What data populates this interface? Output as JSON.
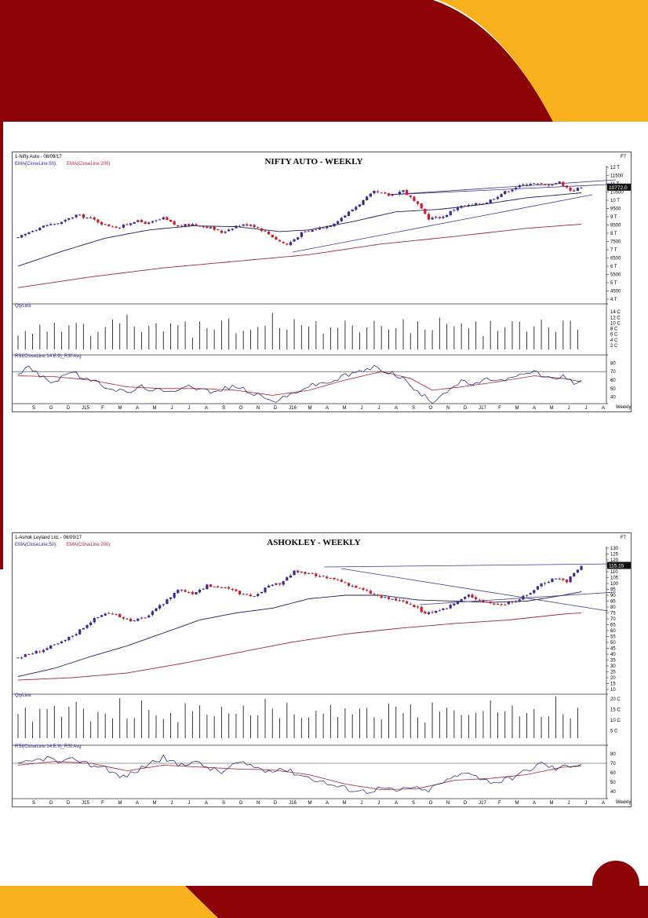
{
  "colors": {
    "maroon": "#8b0304",
    "gold": "#f8b01c",
    "bull": "#3b2a8f",
    "bear": "#d21c2c",
    "ema50": "#1c1c5e",
    "ema200": "#a0283c",
    "rsi": "#1e1e6e",
    "rsi_avg": "#a0283c",
    "trend": "#3a3a8c"
  },
  "page_number": "",
  "charts": [
    {
      "id": "nifty",
      "header": "1-Nifty Auto - 08/09/17",
      "f7": "F7",
      "title": "NIFTY AUTO - WEEKLY",
      "legend_ema50": "EMA(CloseLine:50),",
      "legend_ema200": "EMA(CloseLine:200)",
      "qty_label": "QtyLine",
      "rsi_label": "RSI(CloseLine:14:E:9)_RSI Avg",
      "weekly": "Weekly",
      "last_price": "10772.0",
      "price_ticks": [
        {
          "label": "12 T",
          "v": 12000
        },
        {
          "label": "11500",
          "v": 11500
        },
        {
          "label": "11 T",
          "v": 11000
        },
        {
          "label": "10500",
          "v": 10500
        },
        {
          "label": "10 T",
          "v": 10000
        },
        {
          "label": "9500",
          "v": 9500
        },
        {
          "label": "9 T",
          "v": 9000
        },
        {
          "label": "8500",
          "v": 8500
        },
        {
          "label": "8 T",
          "v": 8000
        },
        {
          "label": "7500",
          "v": 7500
        },
        {
          "label": "7 T",
          "v": 7000
        },
        {
          "label": "6500",
          "v": 6500
        },
        {
          "label": "6 T",
          "v": 6000
        },
        {
          "label": "5500",
          "v": 5500
        },
        {
          "label": "5 T",
          "v": 5000
        },
        {
          "label": "4500",
          "v": 4500
        },
        {
          "label": "4 T",
          "v": 4000
        }
      ],
      "qty_ticks": [
        "14 C",
        "12 C",
        "10 C",
        "8 C",
        "6 C",
        "4 C",
        "2 C"
      ],
      "rsi_ticks": [
        "80",
        "70",
        "60",
        "50",
        "40"
      ],
      "months": [
        "S",
        "O",
        "D",
        "J15",
        "F",
        "M",
        "A",
        "M",
        "J",
        "J",
        "A",
        "S",
        "O",
        "N",
        "D",
        "J16",
        "M",
        "A",
        "M",
        "J",
        "J",
        "A",
        "S",
        "O",
        "N",
        "D",
        "J17",
        "F",
        "M",
        "A",
        "M",
        "J",
        "J",
        "A"
      ]
    },
    {
      "id": "ashokley",
      "header": "1-Ashok Leyland Ltd. - 08/09/17",
      "f7": "F7",
      "title": "ASHOKLEY - WEEKLY",
      "legend_ema50": "EMA(CloseLine:50),",
      "legend_ema200": "EMA(CloseLine:200)",
      "qty_label": "QtyLine",
      "rsi_label": "RSI(CloseLine:14:E:9)_RSI Avg",
      "weekly": "Weekly",
      "last_price": "115.15",
      "price_ticks": [
        {
          "label": "130",
          "v": 130
        },
        {
          "label": "125",
          "v": 125
        },
        {
          "label": "120",
          "v": 120
        },
        {
          "label": "115",
          "v": 115
        },
        {
          "label": "110",
          "v": 110
        },
        {
          "label": "105",
          "v": 105
        },
        {
          "label": "100",
          "v": 100
        },
        {
          "label": "95",
          "v": 95
        },
        {
          "label": "90",
          "v": 90
        },
        {
          "label": "85",
          "v": 85
        },
        {
          "label": "80",
          "v": 80
        },
        {
          "label": "75",
          "v": 75
        },
        {
          "label": "70",
          "v": 70
        },
        {
          "label": "65",
          "v": 65
        },
        {
          "label": "60",
          "v": 60
        },
        {
          "label": "55",
          "v": 55
        },
        {
          "label": "50",
          "v": 50
        },
        {
          "label": "45",
          "v": 45
        },
        {
          "label": "40",
          "v": 40
        },
        {
          "label": "35",
          "v": 35
        },
        {
          "label": "30",
          "v": 30
        },
        {
          "label": "25",
          "v": 25
        },
        {
          "label": "20",
          "v": 20
        },
        {
          "label": "15",
          "v": 15
        },
        {
          "label": "10",
          "v": 10
        }
      ],
      "qty_ticks": [
        "20 C",
        "15 C",
        "10 C",
        "5 C"
      ],
      "rsi_ticks": [
        "80",
        "70",
        "60",
        "50",
        "40"
      ],
      "months": [
        "S",
        "O",
        "D",
        "J15",
        "F",
        "M",
        "A",
        "M",
        "J",
        "J",
        "A",
        "S",
        "O",
        "N",
        "D",
        "J16",
        "M",
        "A",
        "M",
        "J",
        "J",
        "A",
        "S",
        "O",
        "N",
        "D",
        "J17",
        "F",
        "M",
        "A",
        "M",
        "J",
        "J",
        "A"
      ]
    }
  ],
  "chart_data": [
    {
      "type": "candlestick",
      "title": "NIFTY AUTO - WEEKLY",
      "x_range": [
        "Sep 2014",
        "Sep 2017"
      ],
      "ylim": [
        4000,
        12000
      ],
      "close_path": [
        [
          0,
          7700
        ],
        [
          4,
          8200
        ],
        [
          8,
          8500
        ],
        [
          12,
          8650
        ],
        [
          16,
          9100
        ],
        [
          20,
          8900
        ],
        [
          24,
          8500
        ],
        [
          28,
          8350
        ],
        [
          32,
          8750
        ],
        [
          36,
          8600
        ],
        [
          40,
          8900
        ],
        [
          44,
          8400
        ],
        [
          48,
          8550
        ],
        [
          52,
          8400
        ],
        [
          56,
          8050
        ],
        [
          60,
          8450
        ],
        [
          64,
          8550
        ],
        [
          68,
          8100
        ],
        [
          72,
          7500
        ],
        [
          74,
          7300
        ],
        [
          78,
          8000
        ],
        [
          82,
          8250
        ],
        [
          86,
          8500
        ],
        [
          90,
          9100
        ],
        [
          94,
          9800
        ],
        [
          98,
          10500
        ],
        [
          102,
          10300
        ],
        [
          106,
          10600
        ],
        [
          110,
          9700
        ],
        [
          113,
          8900
        ],
        [
          117,
          9000
        ],
        [
          121,
          9600
        ],
        [
          125,
          9700
        ],
        [
          129,
          9900
        ],
        [
          133,
          10400
        ],
        [
          137,
          10800
        ],
        [
          141,
          11050
        ],
        [
          145,
          10900
        ],
        [
          149,
          11100
        ],
        [
          152,
          10600
        ],
        [
          155,
          10772
        ]
      ],
      "ema50_path": [
        [
          0,
          6000
        ],
        [
          12,
          6900
        ],
        [
          24,
          7700
        ],
        [
          36,
          8200
        ],
        [
          48,
          8450
        ],
        [
          60,
          8400
        ],
        [
          72,
          8100
        ],
        [
          80,
          8200
        ],
        [
          92,
          8700
        ],
        [
          104,
          9300
        ],
        [
          116,
          9450
        ],
        [
          128,
          9750
        ],
        [
          140,
          10150
        ],
        [
          155,
          10450
        ]
      ],
      "ema200_path": [
        [
          0,
          4700
        ],
        [
          20,
          5350
        ],
        [
          40,
          5900
        ],
        [
          60,
          6300
        ],
        [
          80,
          6700
        ],
        [
          100,
          7350
        ],
        [
          120,
          7800
        ],
        [
          140,
          8300
        ],
        [
          155,
          8550
        ]
      ],
      "volume_pattern": [
        6,
        8,
        7,
        9,
        5,
        10,
        8,
        7,
        9,
        11,
        6,
        8,
        9,
        10,
        7,
        12,
        9,
        8,
        10,
        11
      ],
      "rsi_path": [
        [
          0,
          68
        ],
        [
          3,
          75
        ],
        [
          7,
          62
        ],
        [
          10,
          58
        ],
        [
          14,
          70
        ],
        [
          18,
          63
        ],
        [
          22,
          56
        ],
        [
          26,
          50
        ],
        [
          30,
          45
        ],
        [
          34,
          52
        ],
        [
          38,
          48
        ],
        [
          42,
          45
        ],
        [
          46,
          55
        ],
        [
          50,
          50
        ],
        [
          54,
          45
        ],
        [
          58,
          52
        ],
        [
          62,
          50
        ],
        [
          66,
          42
        ],
        [
          70,
          35
        ],
        [
          74,
          40
        ],
        [
          78,
          50
        ],
        [
          82,
          55
        ],
        [
          86,
          58
        ],
        [
          90,
          65
        ],
        [
          94,
          70
        ],
        [
          98,
          75
        ],
        [
          102,
          70
        ],
        [
          106,
          62
        ],
        [
          110,
          45
        ],
        [
          114,
          35
        ],
        [
          118,
          48
        ],
        [
          122,
          58
        ],
        [
          126,
          55
        ],
        [
          130,
          62
        ],
        [
          134,
          58
        ],
        [
          138,
          65
        ],
        [
          142,
          70
        ],
        [
          146,
          62
        ],
        [
          150,
          65
        ],
        [
          153,
          55
        ],
        [
          155,
          58
        ]
      ],
      "rsi_avg_path": [
        [
          0,
          65
        ],
        [
          10,
          64
        ],
        [
          20,
          60
        ],
        [
          30,
          52
        ],
        [
          40,
          50
        ],
        [
          50,
          50
        ],
        [
          60,
          48
        ],
        [
          70,
          42
        ],
        [
          80,
          48
        ],
        [
          90,
          60
        ],
        [
          100,
          70
        ],
        [
          108,
          62
        ],
        [
          114,
          48
        ],
        [
          122,
          52
        ],
        [
          132,
          58
        ],
        [
          142,
          65
        ],
        [
          150,
          62
        ],
        [
          155,
          58
        ]
      ]
    },
    {
      "type": "candlestick",
      "title": "ASHOKLEY - WEEKLY",
      "x_range": [
        "Sep 2014",
        "Sep 2017"
      ],
      "ylim": [
        10,
        130
      ],
      "close_path": [
        [
          0,
          37
        ],
        [
          4,
          41
        ],
        [
          8,
          45
        ],
        [
          12,
          50
        ],
        [
          16,
          58
        ],
        [
          20,
          68
        ],
        [
          24,
          75
        ],
        [
          28,
          72
        ],
        [
          32,
          68
        ],
        [
          36,
          73
        ],
        [
          40,
          83
        ],
        [
          44,
          95
        ],
        [
          48,
          92
        ],
        [
          52,
          98
        ],
        [
          56,
          97
        ],
        [
          60,
          93
        ],
        [
          64,
          88
        ],
        [
          68,
          96
        ],
        [
          72,
          100
        ],
        [
          76,
          110
        ],
        [
          80,
          108
        ],
        [
          84,
          105
        ],
        [
          88,
          103
        ],
        [
          92,
          98
        ],
        [
          96,
          93
        ],
        [
          100,
          88
        ],
        [
          104,
          86
        ],
        [
          108,
          82
        ],
        [
          112,
          75
        ],
        [
          116,
          76
        ],
        [
          120,
          83
        ],
        [
          124,
          90
        ],
        [
          128,
          85
        ],
        [
          132,
          82
        ],
        [
          136,
          84
        ],
        [
          140,
          90
        ],
        [
          144,
          100
        ],
        [
          148,
          105
        ],
        [
          151,
          102
        ],
        [
          155,
          115
        ]
      ],
      "ema50_path": [
        [
          0,
          21
        ],
        [
          10,
          28
        ],
        [
          20,
          38
        ],
        [
          30,
          47
        ],
        [
          40,
          58
        ],
        [
          50,
          69
        ],
        [
          60,
          75
        ],
        [
          70,
          79
        ],
        [
          80,
          87
        ],
        [
          90,
          90
        ],
        [
          100,
          90
        ],
        [
          110,
          86
        ],
        [
          120,
          85
        ],
        [
          130,
          84
        ],
        [
          140,
          85
        ],
        [
          150,
          90
        ],
        [
          155,
          93
        ]
      ],
      "ema200_path": [
        [
          0,
          18
        ],
        [
          15,
          20
        ],
        [
          30,
          24
        ],
        [
          45,
          32
        ],
        [
          60,
          41
        ],
        [
          75,
          50
        ],
        [
          90,
          57
        ],
        [
          105,
          62
        ],
        [
          120,
          66
        ],
        [
          135,
          69
        ],
        [
          150,
          74
        ],
        [
          155,
          75
        ]
      ],
      "volume_pattern": [
        7,
        9,
        6,
        10,
        8,
        12,
        7,
        9,
        11,
        8,
        6,
        10,
        9,
        7,
        13,
        8,
        6,
        11,
        9,
        8
      ],
      "rsi_path": [
        [
          0,
          68
        ],
        [
          4,
          72
        ],
        [
          8,
          76
        ],
        [
          12,
          70
        ],
        [
          16,
          75
        ],
        [
          20,
          68
        ],
        [
          24,
          66
        ],
        [
          28,
          55
        ],
        [
          32,
          60
        ],
        [
          36,
          70
        ],
        [
          40,
          76
        ],
        [
          44,
          68
        ],
        [
          48,
          72
        ],
        [
          52,
          66
        ],
        [
          56,
          60
        ],
        [
          60,
          70
        ],
        [
          64,
          68
        ],
        [
          68,
          62
        ],
        [
          72,
          65
        ],
        [
          76,
          60
        ],
        [
          80,
          55
        ],
        [
          84,
          50
        ],
        [
          88,
          45
        ],
        [
          92,
          42
        ],
        [
          96,
          40
        ],
        [
          100,
          44
        ],
        [
          104,
          40
        ],
        [
          108,
          45
        ],
        [
          112,
          40
        ],
        [
          116,
          48
        ],
        [
          120,
          55
        ],
        [
          124,
          62
        ],
        [
          128,
          52
        ],
        [
          132,
          50
        ],
        [
          136,
          55
        ],
        [
          140,
          62
        ],
        [
          144,
          70
        ],
        [
          148,
          64
        ],
        [
          152,
          68
        ],
        [
          155,
          70
        ]
      ],
      "rsi_avg_path": [
        [
          0,
          68
        ],
        [
          10,
          72
        ],
        [
          20,
          70
        ],
        [
          30,
          62
        ],
        [
          40,
          68
        ],
        [
          50,
          66
        ],
        [
          60,
          64
        ],
        [
          70,
          63
        ],
        [
          80,
          58
        ],
        [
          90,
          48
        ],
        [
          100,
          42
        ],
        [
          110,
          43
        ],
        [
          120,
          52
        ],
        [
          130,
          54
        ],
        [
          140,
          58
        ],
        [
          150,
          66
        ],
        [
          155,
          67
        ]
      ]
    }
  ]
}
